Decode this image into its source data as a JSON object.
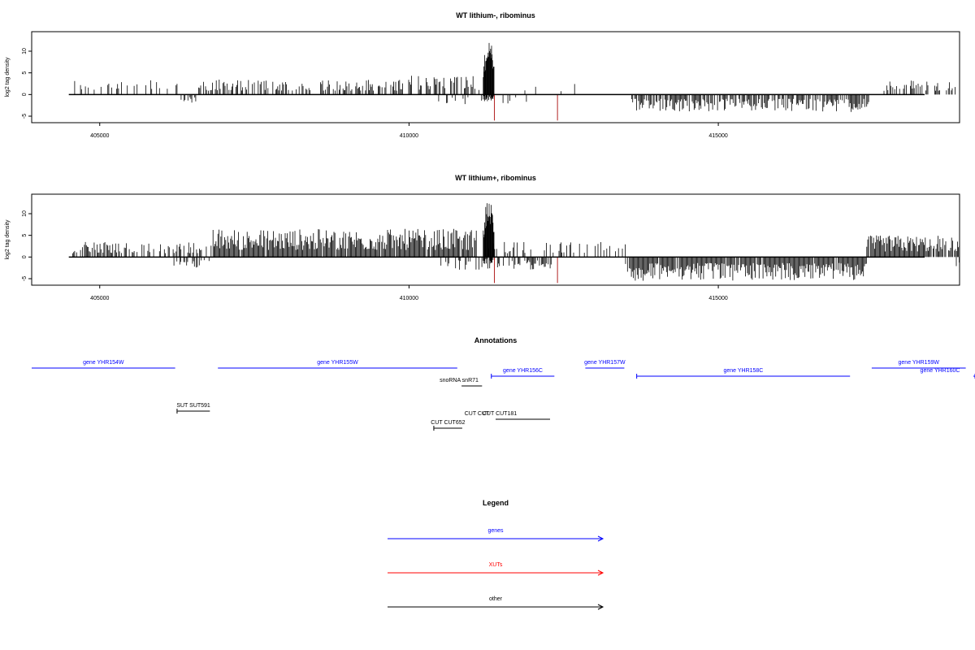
{
  "chart_data": [
    {
      "type": "bar",
      "title": "WT lithium-, ribominus",
      "ylabel": "log2 tag density",
      "xlim": [
        403900,
        418900
      ],
      "ylim": [
        -6.5,
        14.5
      ],
      "yticks": [
        -5,
        0,
        5,
        10
      ],
      "xticks": [
        405000,
        410000,
        415000
      ],
      "grid": false,
      "baseline": {
        "from": 404500,
        "to": 419400
      },
      "positive_regions": [
        {
          "from": 404500,
          "to": 406300,
          "max": 3.5,
          "density": 0.28
        },
        {
          "from": 406600,
          "to": 409900,
          "max": 3.5,
          "density": 0.55
        },
        {
          "from": 409900,
          "to": 411100,
          "max": 4.5,
          "density": 0.45
        },
        {
          "from": 411100,
          "to": 412800,
          "max": 2.5,
          "density": 0.08
        },
        {
          "from": 417600,
          "to": 419000,
          "max": 3.5,
          "density": 0.35
        }
      ],
      "negative_regions": [
        {
          "from": 406300,
          "to": 406600,
          "min": -2.0,
          "density": 0.35
        },
        {
          "from": 410400,
          "to": 412000,
          "min": -2.5,
          "density": 0.15
        },
        {
          "from": 413600,
          "to": 417500,
          "min": -4.0,
          "density": 0.75
        }
      ],
      "peak": {
        "from": 411200,
        "to": 411380,
        "max": 13.0
      },
      "xut_marks": [
        {
          "x": 411380,
          "y": -6.0
        },
        {
          "x": 412400,
          "y": -6.0
        }
      ]
    },
    {
      "type": "bar",
      "title": "WT lithium+, ribominus",
      "ylabel": "log2 tag density",
      "xlim": [
        403900,
        418900
      ],
      "ylim": [
        -6.5,
        14.5
      ],
      "yticks": [
        -5,
        0,
        5,
        10
      ],
      "xticks": [
        405000,
        410000,
        415000
      ],
      "grid": false,
      "baseline": {
        "from": 404500,
        "to": 419400
      },
      "positive_regions": [
        {
          "from": 404500,
          "to": 406800,
          "max": 3.5,
          "density": 0.45
        },
        {
          "from": 406800,
          "to": 411100,
          "max": 6.5,
          "density": 0.95
        },
        {
          "from": 411100,
          "to": 413500,
          "max": 3.5,
          "density": 0.28
        },
        {
          "from": 417400,
          "to": 419300,
          "max": 5.0,
          "density": 0.92
        }
      ],
      "negative_regions": [
        {
          "from": 406200,
          "to": 406800,
          "min": -2.5,
          "density": 0.35
        },
        {
          "from": 410500,
          "to": 412300,
          "min": -3.0,
          "density": 0.5
        },
        {
          "from": 413500,
          "to": 417400,
          "min": -5.5,
          "density": 0.95
        },
        {
          "from": 418800,
          "to": 419400,
          "min": -2.5,
          "density": 0.3
        }
      ],
      "peak": {
        "from": 411200,
        "to": 411380,
        "max": 14.0
      },
      "xut_marks": [
        {
          "x": 411380,
          "y": -6.0
        },
        {
          "x": 412400,
          "y": -6.0
        }
      ]
    }
  ],
  "annotations": {
    "title": "Annotations",
    "features": [
      {
        "label": "gene YHR154W",
        "kind": "gene",
        "strand": "+",
        "start": 403900,
        "end": 406220,
        "lane": 0
      },
      {
        "label": "gene YHR155W",
        "kind": "gene",
        "strand": "+",
        "start": 406910,
        "end": 410780,
        "lane": 0
      },
      {
        "label": "gene YHR156C",
        "kind": "gene",
        "strand": "-",
        "start": 411330,
        "end": 412350,
        "lane": 1
      },
      {
        "label": "gene YHR157W",
        "kind": "gene",
        "strand": "+",
        "start": 412850,
        "end": 413480,
        "lane": 0
      },
      {
        "label": "gene YHR158C",
        "kind": "gene",
        "strand": "-",
        "start": 413680,
        "end": 417130,
        "lane": 2
      },
      {
        "label": "gene YHR159W",
        "kind": "gene",
        "strand": "+",
        "start": 417480,
        "end": 419000,
        "lane": 0
      },
      {
        "label": "gene YHR160C",
        "kind": "gene",
        "strand": "-",
        "start": 419150,
        "end": 420400,
        "lane": 2
      },
      {
        "label": "snoRNA snR71",
        "kind": "other",
        "strand": "+",
        "start": 410850,
        "end": 411180,
        "lane": 3
      },
      {
        "label": "SUT SUT591",
        "kind": "other",
        "strand": "-",
        "start": 406250,
        "end": 406780,
        "lane": 4
      },
      {
        "label": "CUT CUT652",
        "kind": "other",
        "strand": "-",
        "start": 410400,
        "end": 410860,
        "lane": 6
      },
      {
        "label": "CUT CUT181",
        "kind": "other",
        "strand": "+",
        "start": 411550,
        "end": 412280,
        "lane": 5
      },
      {
        "label": "CUT CUT",
        "kind": "other",
        "strand": "+",
        "start": 411400,
        "end": 411620,
        "lane": 5
      }
    ]
  },
  "legend": {
    "title": "Legend",
    "items": [
      {
        "label": "genes",
        "color": "#0000ff"
      },
      {
        "label": "XUTs",
        "color": "#ff0000"
      },
      {
        "label": "other",
        "color": "#000000"
      }
    ]
  },
  "colors": {
    "gene": "#0000ff",
    "xut": "#ff0000",
    "other": "#000000",
    "xut_mark": "#b22222"
  }
}
